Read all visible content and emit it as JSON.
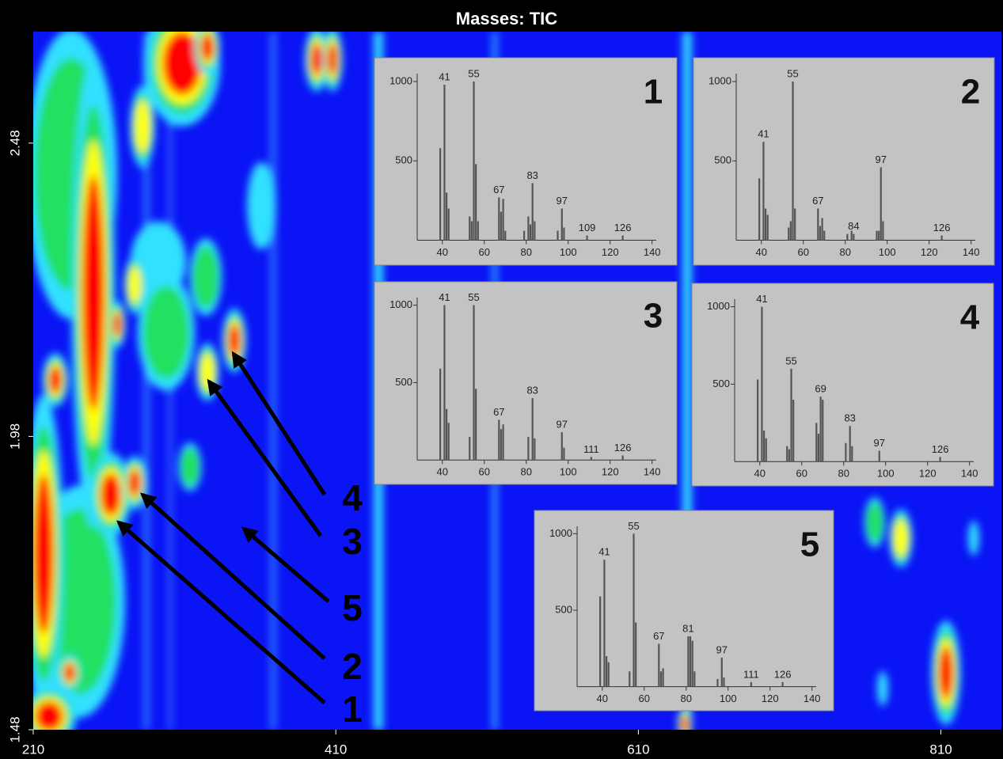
{
  "chart_data": [
    {
      "type": "heatmap",
      "title": "Masses: TIC",
      "xlim": [
        210,
        850
      ],
      "ylim": [
        1.48,
        2.67
      ],
      "xticks": [
        210,
        410,
        610,
        810
      ],
      "yticks": [
        1.48,
        1.98,
        2.48
      ],
      "annotations": [
        "4",
        "3",
        "5",
        "2",
        "1"
      ]
    },
    {
      "type": "bar",
      "label": "1",
      "color": "#555555",
      "xlim": [
        28,
        142
      ],
      "ylim": [
        0,
        1100
      ],
      "xticks": [
        40,
        60,
        80,
        100,
        120,
        140
      ],
      "yticks": [
        500,
        1000
      ],
      "x": [
        39,
        41,
        42,
        43,
        53,
        54,
        55,
        56,
        57,
        67,
        68,
        69,
        70,
        79,
        81,
        82,
        83,
        84,
        95,
        97,
        98,
        109,
        126
      ],
      "values": [
        580,
        980,
        300,
        200,
        150,
        120,
        1000,
        480,
        120,
        270,
        180,
        260,
        60,
        60,
        150,
        100,
        360,
        120,
        60,
        200,
        80,
        30,
        30
      ],
      "annotations": [
        41,
        55,
        67,
        83,
        97,
        109,
        126
      ]
    },
    {
      "type": "bar",
      "label": "2",
      "color": "#555555",
      "xlim": [
        28,
        142
      ],
      "ylim": [
        0,
        1100
      ],
      "xticks": [
        40,
        60,
        80,
        100,
        120,
        140
      ],
      "yticks": [
        500,
        1000
      ],
      "x": [
        39,
        41,
        42,
        43,
        53,
        54,
        55,
        56,
        67,
        68,
        69,
        70,
        81,
        83,
        84,
        95,
        96,
        97,
        98,
        126
      ],
      "values": [
        390,
        620,
        200,
        160,
        80,
        120,
        1000,
        200,
        200,
        90,
        140,
        60,
        40,
        60,
        40,
        60,
        60,
        460,
        120,
        30
      ],
      "annotations": [
        41,
        55,
        67,
        84,
        97,
        126
      ]
    },
    {
      "type": "bar",
      "label": "3",
      "color": "#555555",
      "xlim": [
        28,
        142
      ],
      "ylim": [
        0,
        1100
      ],
      "xticks": [
        40,
        60,
        80,
        100,
        120,
        140
      ],
      "yticks": [
        500,
        1000
      ],
      "x": [
        39,
        41,
        42,
        43,
        53,
        55,
        56,
        67,
        68,
        69,
        81,
        83,
        84,
        97,
        98,
        111,
        126
      ],
      "values": [
        590,
        1000,
        330,
        240,
        150,
        1000,
        460,
        260,
        200,
        230,
        150,
        400,
        140,
        180,
        80,
        20,
        30
      ],
      "annotations": [
        41,
        55,
        67,
        83,
        97,
        111,
        126
      ]
    },
    {
      "type": "bar",
      "label": "4",
      "color": "#555555",
      "xlim": [
        28,
        142
      ],
      "ylim": [
        0,
        1100
      ],
      "xticks": [
        40,
        60,
        80,
        100,
        120,
        140
      ],
      "yticks": [
        500,
        1000
      ],
      "x": [
        39,
        41,
        42,
        43,
        53,
        54,
        55,
        56,
        67,
        68,
        69,
        70,
        81,
        83,
        84,
        97,
        126
      ],
      "values": [
        530,
        1000,
        200,
        150,
        100,
        80,
        600,
        400,
        250,
        180,
        420,
        400,
        120,
        230,
        100,
        70,
        30
      ],
      "annotations": [
        41,
        55,
        69,
        83,
        97,
        126
      ]
    },
    {
      "type": "bar",
      "label": "5",
      "color": "#555555",
      "xlim": [
        28,
        142
      ],
      "ylim": [
        0,
        1100
      ],
      "xticks": [
        40,
        60,
        80,
        100,
        120,
        140
      ],
      "yticks": [
        500,
        1000
      ],
      "x": [
        39,
        41,
        42,
        43,
        53,
        55,
        56,
        67,
        68,
        69,
        81,
        82,
        83,
        84,
        95,
        97,
        98,
        111,
        126
      ],
      "values": [
        590,
        830,
        200,
        160,
        100,
        1000,
        420,
        280,
        100,
        120,
        330,
        330,
        300,
        100,
        50,
        190,
        60,
        30,
        30
      ],
      "annotations": [
        41,
        55,
        67,
        81,
        97,
        111,
        126
      ]
    }
  ]
}
